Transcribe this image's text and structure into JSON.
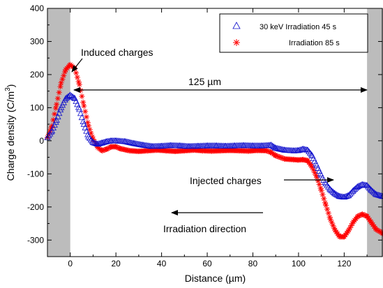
{
  "chart_data": {
    "type": "scatter",
    "title": "",
    "xlabel": "Distance (µm)",
    "ylabel_main": "Charge density (C/m",
    "ylabel_sup": "3",
    "ylabel_close": ")",
    "xlim": [
      -10,
      137
    ],
    "ylim": [
      -350,
      400
    ],
    "xticks": [
      0,
      20,
      40,
      60,
      80,
      100,
      120
    ],
    "yticks": [
      -300,
      -200,
      -100,
      0,
      100,
      200,
      300,
      400
    ],
    "xtick_labels": [
      "0",
      "20",
      "40",
      "60",
      "80",
      "100",
      "120"
    ],
    "ytick_labels": [
      "-300",
      "-200",
      "-100",
      "0",
      "100",
      "200",
      "300",
      "400"
    ],
    "grid": false,
    "legend_position": "top-right",
    "shaded_regions": [
      {
        "x0": -10,
        "x1": 0,
        "color": "#bcbcbc"
      },
      {
        "x0": 130,
        "x1": 137,
        "color": "#bcbcbc"
      }
    ],
    "series": [
      {
        "name": "30 keV  Irradiation 45 s",
        "marker": "triangle",
        "color": "#1010cc",
        "points": [
          [
            -10,
            10
          ],
          [
            -8,
            30
          ],
          [
            -6,
            62
          ],
          [
            -4,
            100
          ],
          [
            -2,
            128
          ],
          [
            0,
            138
          ],
          [
            2,
            128
          ],
          [
            4,
            95
          ],
          [
            6,
            50
          ],
          [
            8,
            12
          ],
          [
            10,
            -5
          ],
          [
            12,
            -10
          ],
          [
            14,
            -6
          ],
          [
            16,
            -2
          ],
          [
            18,
            0
          ],
          [
            20,
            0
          ],
          [
            24,
            -2
          ],
          [
            28,
            -8
          ],
          [
            32,
            -13
          ],
          [
            36,
            -17
          ],
          [
            40,
            -16
          ],
          [
            44,
            -14
          ],
          [
            48,
            -15
          ],
          [
            52,
            -17
          ],
          [
            56,
            -16
          ],
          [
            60,
            -15
          ],
          [
            64,
            -15
          ],
          [
            68,
            -16
          ],
          [
            72,
            -15
          ],
          [
            76,
            -14
          ],
          [
            80,
            -15
          ],
          [
            84,
            -15
          ],
          [
            88,
            -13
          ],
          [
            90,
            -22
          ],
          [
            94,
            -28
          ],
          [
            98,
            -30
          ],
          [
            100,
            -29
          ],
          [
            102,
            -25
          ],
          [
            104,
            -28
          ],
          [
            106,
            -45
          ],
          [
            108,
            -75
          ],
          [
            110,
            -105
          ],
          [
            112,
            -130
          ],
          [
            114,
            -148
          ],
          [
            116,
            -160
          ],
          [
            118,
            -168
          ],
          [
            120,
            -170
          ],
          [
            122,
            -165
          ],
          [
            124,
            -150
          ],
          [
            126,
            -138
          ],
          [
            128,
            -132
          ],
          [
            130,
            -135
          ],
          [
            132,
            -150
          ],
          [
            134,
            -162
          ],
          [
            137,
            -168
          ]
        ]
      },
      {
        "name": "Irradiation 85 s",
        "marker": "star",
        "color": "#ff0000",
        "points": [
          [
            -10,
            10
          ],
          [
            -8,
            45
          ],
          [
            -6,
            110
          ],
          [
            -4,
            175
          ],
          [
            -2,
            215
          ],
          [
            0,
            230
          ],
          [
            2,
            218
          ],
          [
            4,
            170
          ],
          [
            6,
            105
          ],
          [
            8,
            45
          ],
          [
            10,
            5
          ],
          [
            12,
            -20
          ],
          [
            14,
            -30
          ],
          [
            16,
            -25
          ],
          [
            18,
            -18
          ],
          [
            20,
            -18
          ],
          [
            22,
            -24
          ],
          [
            26,
            -30
          ],
          [
            30,
            -32
          ],
          [
            34,
            -30
          ],
          [
            38,
            -28
          ],
          [
            42,
            -30
          ],
          [
            46,
            -32
          ],
          [
            50,
            -30
          ],
          [
            54,
            -28
          ],
          [
            58,
            -30
          ],
          [
            62,
            -31
          ],
          [
            66,
            -30
          ],
          [
            70,
            -29
          ],
          [
            74,
            -30
          ],
          [
            78,
            -31
          ],
          [
            82,
            -29
          ],
          [
            86,
            -30
          ],
          [
            88,
            -35
          ],
          [
            90,
            -45
          ],
          [
            94,
            -55
          ],
          [
            98,
            -57
          ],
          [
            100,
            -58
          ],
          [
            102,
            -57
          ],
          [
            104,
            -60
          ],
          [
            106,
            -80
          ],
          [
            108,
            -110
          ],
          [
            110,
            -150
          ],
          [
            112,
            -195
          ],
          [
            114,
            -238
          ],
          [
            116,
            -270
          ],
          [
            118,
            -290
          ],
          [
            120,
            -290
          ],
          [
            122,
            -270
          ],
          [
            124,
            -245
          ],
          [
            126,
            -228
          ],
          [
            128,
            -222
          ],
          [
            130,
            -228
          ],
          [
            132,
            -248
          ],
          [
            134,
            -268
          ],
          [
            137,
            -280
          ]
        ]
      }
    ],
    "annotations": [
      {
        "text": "Induced charges"
      },
      {
        "text": "125 µm"
      },
      {
        "text": "Injected charges"
      },
      {
        "text": "Irradiation direction"
      }
    ]
  }
}
